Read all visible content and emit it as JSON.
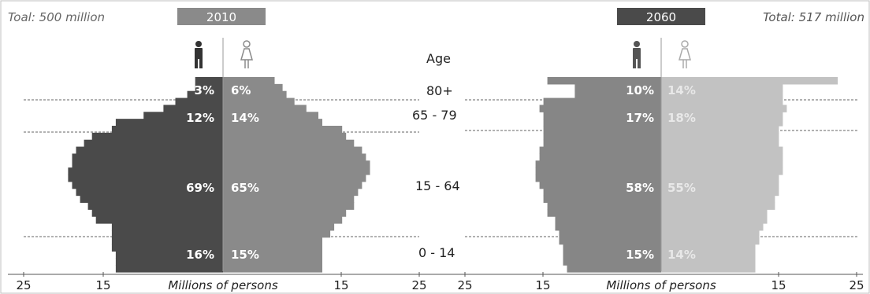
{
  "chart_data": {
    "type": "population-pyramid",
    "left_total": "Toal: 500 million",
    "right_total": "Total: 517 million",
    "age_heading": "Age",
    "xlabel": "Millions of persons",
    "x_ticks": [
      "25",
      "15",
      "15",
      "25",
      "25",
      "15",
      "15",
      "25"
    ],
    "colors": {
      "male_2010": "#4a4a4a",
      "female_2010": "#8a8a8a",
      "male_2060": "#868686",
      "female_2060": "#c2c2c2"
    },
    "icons": {
      "male": "male-figure-icon",
      "female": "female-figure-icon"
    },
    "age_groups": [
      "80+",
      "65 - 79",
      "15 - 64",
      "0 - 14"
    ],
    "pyramids": [
      {
        "year": "2010",
        "male_pct": [
          "3%",
          "12%",
          "69%",
          "16%"
        ],
        "female_pct": [
          "6%",
          "14%",
          "65%",
          "15%"
        ],
        "male_values": [
          3.5,
          3.5,
          4.5,
          6,
          7.5,
          10,
          13.5,
          14,
          16.5,
          17.5,
          18.5,
          19,
          19,
          19.5,
          19.5,
          19,
          18.5,
          18,
          17,
          16.5,
          16,
          14,
          14,
          14,
          14,
          13.5,
          13.5,
          13.5
        ],
        "female_values": [
          6.5,
          7.5,
          8,
          9,
          10.5,
          12,
          12.5,
          15,
          15.5,
          16.5,
          17.5,
          18,
          18.5,
          18.5,
          18,
          17.5,
          17,
          16.5,
          16.5,
          15.5,
          15,
          14,
          13.5,
          12.5,
          12.5,
          12.5,
          12.5,
          12.5
        ]
      },
      {
        "year": "2060",
        "male_pct": [
          "10%",
          "17%",
          "58%",
          "15%"
        ],
        "female_pct": [
          "14%",
          "18%",
          "55%",
          "14%"
        ],
        "male_values": [
          14.5,
          11,
          11,
          15,
          15.5,
          15,
          15,
          15,
          15,
          15,
          15.5,
          15.5,
          16,
          16,
          16,
          15.5,
          15,
          15,
          14.5,
          14.5,
          13.5,
          13.5,
          13,
          13,
          12.5,
          12.5,
          12.5,
          12
        ],
        "female_values": [
          22.5,
          15.5,
          15.5,
          15.5,
          16,
          15.5,
          15.5,
          15,
          15,
          15,
          15.5,
          15.5,
          15.5,
          15.5,
          15,
          15,
          15,
          14.5,
          14.5,
          13.5,
          13.5,
          13,
          12.5,
          12.5,
          12,
          12,
          12,
          12
        ]
      }
    ]
  }
}
